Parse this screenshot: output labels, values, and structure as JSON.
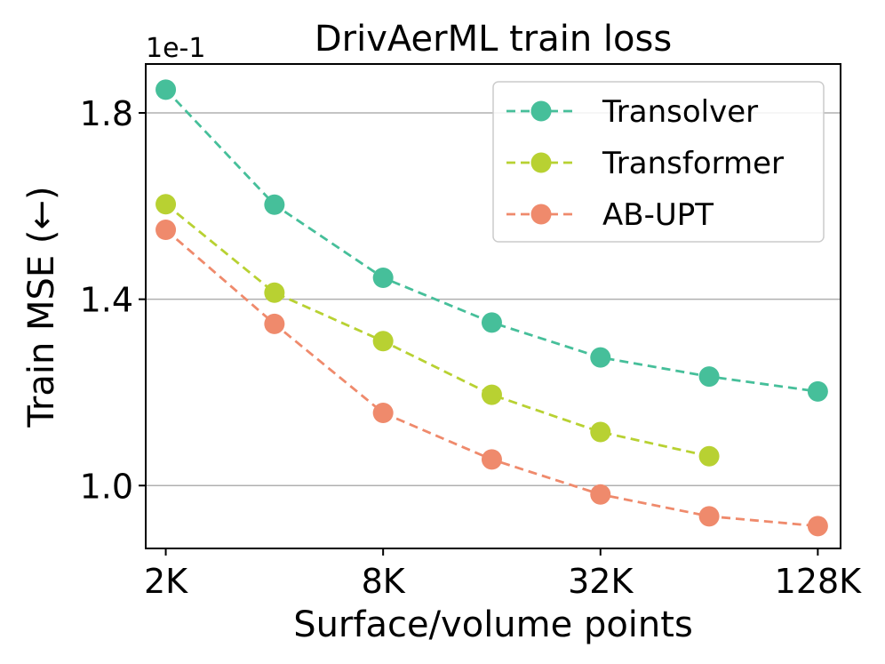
{
  "chart_data": {
    "type": "line",
    "title": "DrivAerML train loss",
    "xlabel": "Surface/volume points",
    "ylabel": "Train MSE (←)",
    "y_offset_label": "1e-1",
    "x_scale": "log2",
    "x": [
      2,
      4,
      8,
      16,
      32,
      64,
      128
    ],
    "x_unit": "K points",
    "xticks": [
      {
        "value": 2,
        "label": "2K"
      },
      {
        "value": 8,
        "label": "8K"
      },
      {
        "value": 32,
        "label": "32K"
      },
      {
        "value": 128,
        "label": "128K"
      }
    ],
    "yticks": [
      {
        "value": 1.0,
        "label": "1.0"
      },
      {
        "value": 1.4,
        "label": "1.4"
      },
      {
        "value": 1.8,
        "label": "1.8"
      }
    ],
    "xlim": [
      1.76,
      148
    ],
    "ylim": [
      0.865,
      1.905
    ],
    "grid": "y",
    "legend_position": "top-right",
    "series": [
      {
        "name": "Transolver",
        "color": "#46bf9a",
        "x": [
          2,
          4,
          8,
          16,
          32,
          64,
          128
        ],
        "values": [
          1.85,
          1.603,
          1.446,
          1.35,
          1.275,
          1.234,
          1.202
        ]
      },
      {
        "name": "Transformer",
        "color": "#b8d132",
        "x": [
          2,
          4,
          8,
          16,
          32,
          64
        ],
        "values": [
          1.604,
          1.414,
          1.31,
          1.195,
          1.115,
          1.063
        ]
      },
      {
        "name": "AB-UPT",
        "color": "#ef8a6c",
        "x": [
          2,
          4,
          8,
          16,
          32,
          64,
          128
        ],
        "values": [
          1.549,
          1.347,
          1.156,
          1.056,
          0.981,
          0.934,
          0.913
        ]
      }
    ]
  }
}
